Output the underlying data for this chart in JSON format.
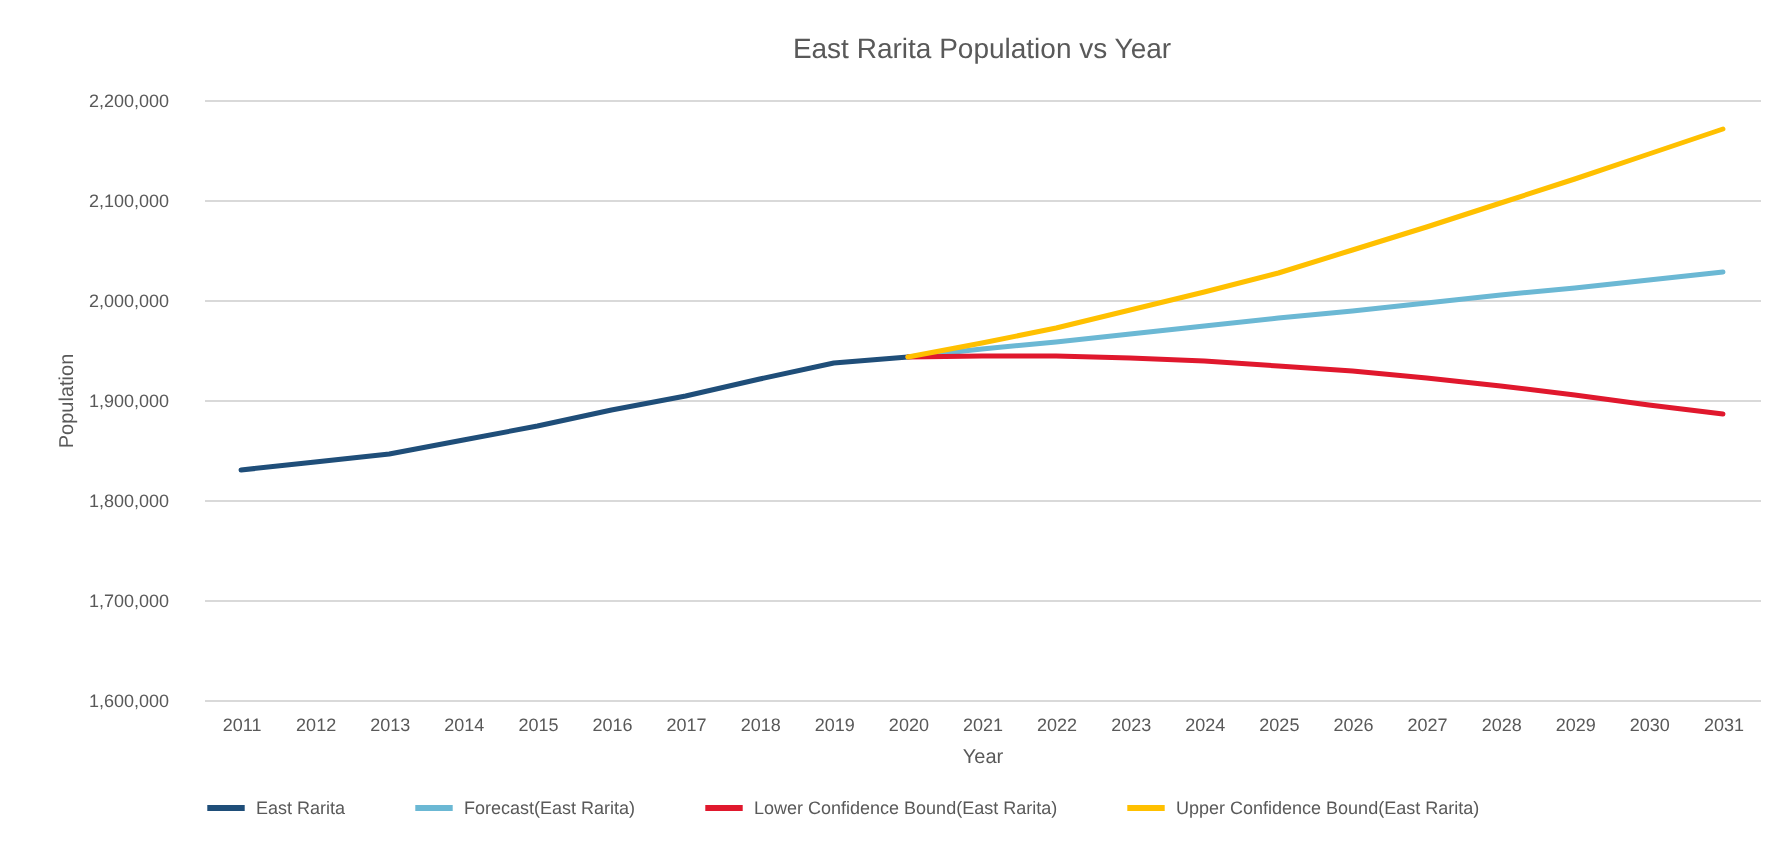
{
  "chart_data": {
    "type": "line",
    "title": "East Rarita Population vs Year",
    "xlabel": "Year",
    "ylabel": "Population",
    "categories": [
      "2011",
      "2012",
      "2013",
      "2014",
      "2015",
      "2016",
      "2017",
      "2018",
      "2019",
      "2020",
      "2021",
      "2022",
      "2023",
      "2024",
      "2025",
      "2026",
      "2027",
      "2028",
      "2029",
      "2030",
      "2031"
    ],
    "series": [
      {
        "name": "East Rarita",
        "color": "#1f4e79",
        "values": [
          1830000,
          1838000,
          1846000,
          1860000,
          1874000,
          1890000,
          1904000,
          1921000,
          1937000,
          1943000,
          null,
          null,
          null,
          null,
          null,
          null,
          null,
          null,
          null,
          null,
          null
        ]
      },
      {
        "name": "Forecast(East Rarita)",
        "color": "#6bb8d4",
        "values": [
          null,
          null,
          null,
          null,
          null,
          null,
          null,
          null,
          null,
          1943000,
          1951000,
          1958000,
          1966000,
          1974000,
          1982000,
          1989000,
          1997000,
          2005000,
          2012000,
          2020000,
          2028000
        ]
      },
      {
        "name": "Lower Confidence Bound(East Rarita)",
        "color": "#e0182d",
        "values": [
          null,
          null,
          null,
          null,
          null,
          null,
          null,
          null,
          null,
          1943000,
          1944000,
          1944000,
          1942000,
          1939000,
          1934000,
          1929000,
          1922000,
          1914000,
          1905000,
          1895000,
          1886000
        ]
      },
      {
        "name": "Upper Confidence Bound(East Rarita)",
        "color": "#ffc000",
        "values": [
          null,
          null,
          null,
          null,
          null,
          null,
          null,
          null,
          null,
          1943000,
          1957000,
          1972000,
          1990000,
          2008000,
          2027000,
          2050000,
          2073000,
          2097000,
          2121000,
          2146000,
          2171000
        ]
      }
    ],
    "ylim": [
      1600000,
      2200000
    ],
    "yticks": [
      {
        "value": 1600000,
        "label": "1,600,000"
      },
      {
        "value": 1700000,
        "label": "1,700,000"
      },
      {
        "value": 1800000,
        "label": "1,800,000"
      },
      {
        "value": 1900000,
        "label": "1,900,000"
      },
      {
        "value": 2000000,
        "label": "2,000,000"
      },
      {
        "value": 2100000,
        "label": "2,100,000"
      },
      {
        "value": 2200000,
        "label": "2,200,000"
      }
    ],
    "grid": "y",
    "legend": "bottom"
  }
}
